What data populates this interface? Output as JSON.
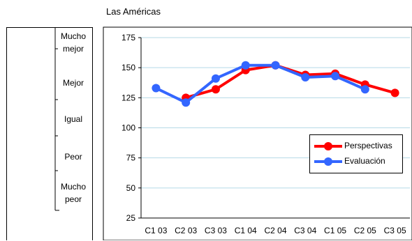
{
  "chart_data": {
    "type": "line",
    "title": "Las Américas",
    "categories": [
      "C1 03",
      "C2 03",
      "C3 03",
      "C1 04",
      "C2 04",
      "C3 04",
      "C1 05",
      "C2 05",
      "C3 05"
    ],
    "yticks": [
      25,
      50,
      75,
      100,
      125,
      150,
      175
    ],
    "ylim": [
      25,
      175
    ],
    "grid": true,
    "legend_position": "right",
    "series": [
      {
        "name": "Perspectivas",
        "color": "#ff0000",
        "values": [
          null,
          125,
          132,
          148,
          152,
          144,
          145,
          136,
          129
        ]
      },
      {
        "name": "Evaluación",
        "color": "#3366ff",
        "values": [
          133,
          121,
          141,
          152,
          152,
          142,
          143,
          132,
          null
        ]
      }
    ],
    "scale_labels": [
      "Mucho mejor",
      "Mejor",
      "Igual",
      "Peor",
      "Mucho peor"
    ]
  }
}
